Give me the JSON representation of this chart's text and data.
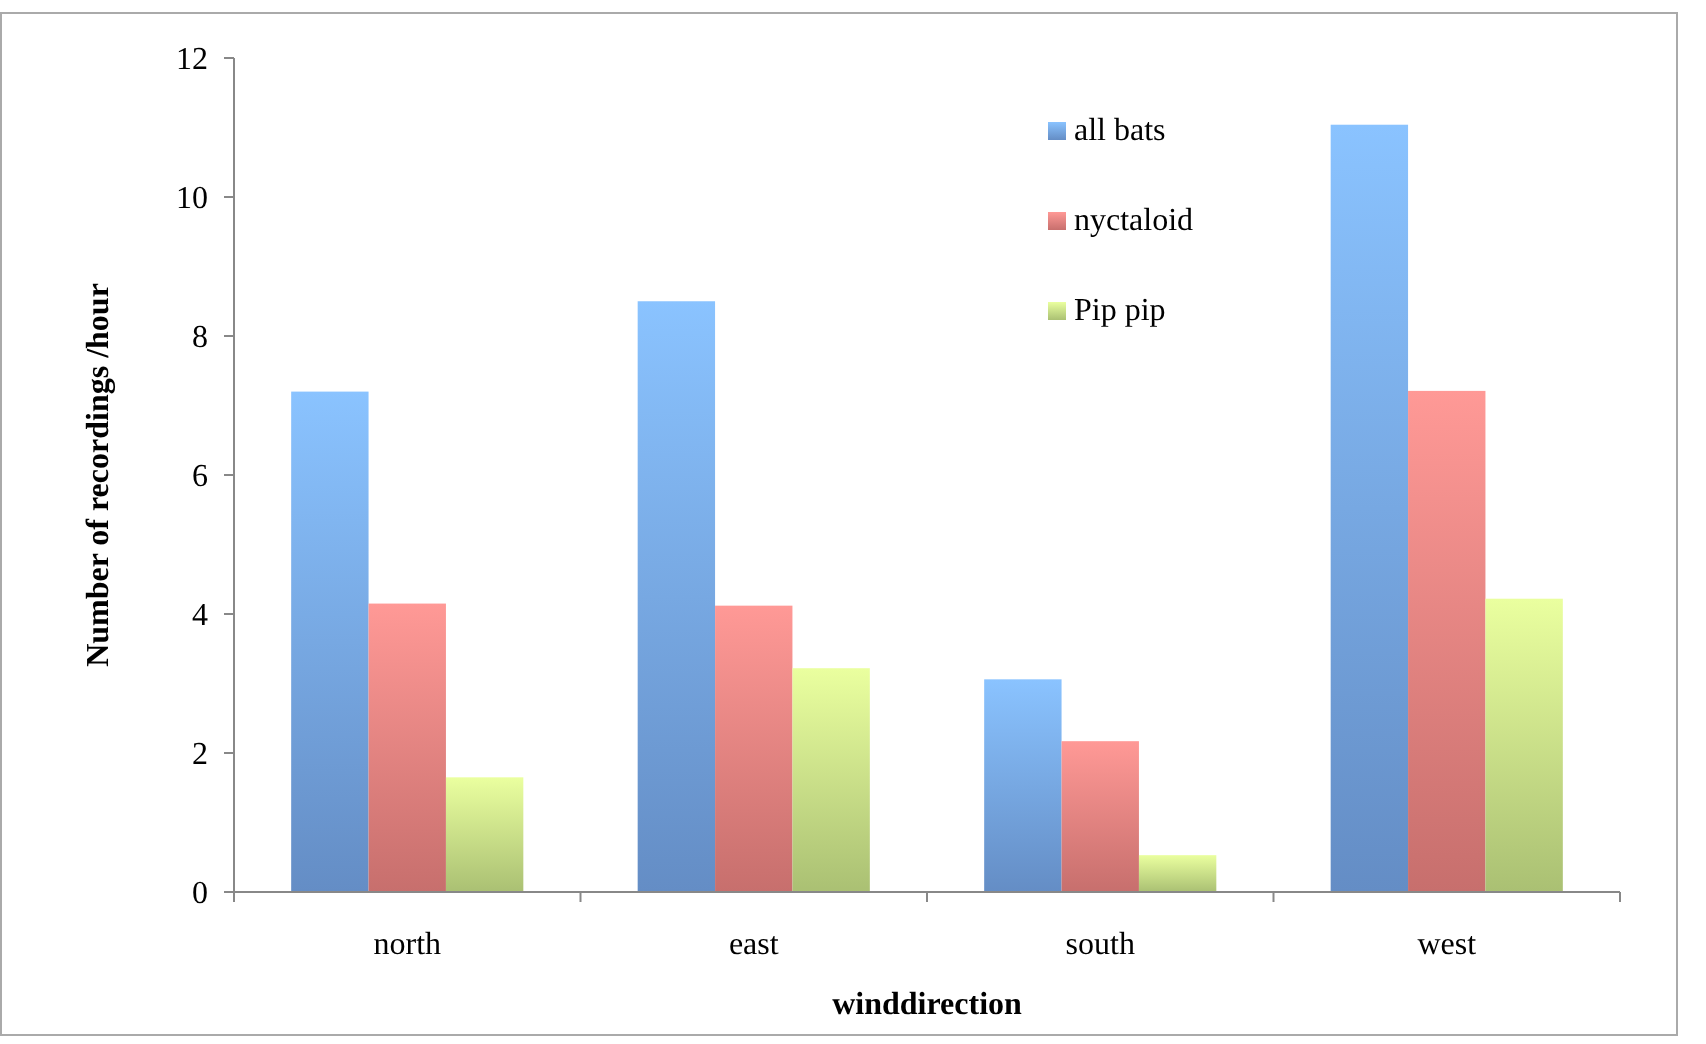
{
  "chart_data": {
    "type": "bar",
    "xlabel": "winddirection",
    "ylabel": "Number of recordings /hour",
    "categories": [
      "north",
      "east",
      "south",
      "west"
    ],
    "series": [
      {
        "name": "all bats",
        "color": "#78a9eb",
        "values": [
          7.2,
          8.5,
          3.06,
          11.04
        ]
      },
      {
        "name": "nyctaloid",
        "color": "#ee8582",
        "values": [
          4.15,
          4.12,
          2.17,
          7.21
        ]
      },
      {
        "name": "Pip pip",
        "color": "#cbe58a",
        "values": [
          1.65,
          3.22,
          0.53,
          4.22
        ]
      }
    ],
    "ylim": [
      0,
      12
    ],
    "yticks": [
      0,
      2,
      4,
      6,
      8,
      10,
      12
    ],
    "grid": false,
    "legend": "top right"
  }
}
